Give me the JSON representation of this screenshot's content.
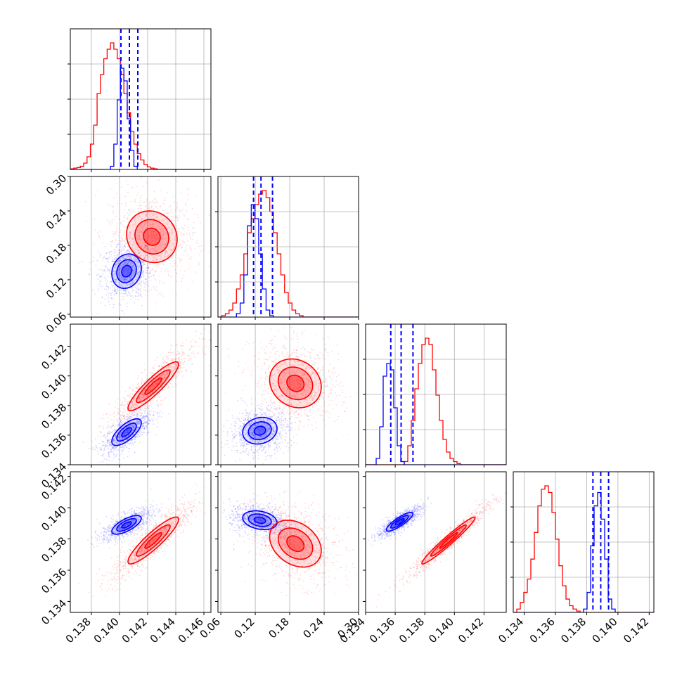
{
  "chart_data": {
    "type": "corner",
    "title": "",
    "parameters": [
      {
        "range": [
          0.1365,
          0.1465
        ],
        "ticks": [
          0.138,
          0.14,
          0.142,
          0.144,
          0.146
        ],
        "tick_labels": [
          "0.138",
          "0.140",
          "0.142",
          "0.144",
          "0.146"
        ]
      },
      {
        "range": [
          0.055,
          0.3
        ],
        "ticks": [
          0.06,
          0.12,
          0.18,
          0.24,
          0.3
        ],
        "tick_labels": [
          "0.06",
          "0.12",
          "0.18",
          "0.24",
          "0.30"
        ]
      },
      {
        "range": [
          0.134,
          0.1435
        ],
        "ticks": [
          0.134,
          0.136,
          0.138,
          0.14,
          0.142
        ],
        "tick_labels": [
          "0.134",
          "0.136",
          "0.138",
          "0.140",
          "0.142"
        ]
      },
      {
        "range": [
          0.1333,
          0.1423
        ],
        "ticks": [
          0.134,
          0.136,
          0.138,
          0.14,
          0.142
        ],
        "tick_labels": [
          "0.134",
          "0.136",
          "0.138",
          "0.140",
          "0.142"
        ]
      }
    ],
    "series": [
      {
        "color": "#0000ff",
        "quantile_lines": [
          [
            0.1401,
            0.1407,
            0.1413
          ],
          [
            0.117,
            0.13,
            0.15
          ],
          [
            0.1357,
            0.1364,
            0.1372
          ],
          [
            0.1384,
            0.1389,
            0.1394
          ]
        ],
        "histograms": [
          {
            "edges": [
              0.1365,
              0.1465
            ],
            "counts": [
              0,
              0,
              0,
              0,
              0,
              0,
              0,
              0,
              0,
              0,
              0,
              0,
              5,
              40,
              110,
              160,
              140,
              80,
              30,
              5,
              0,
              0,
              0,
              0,
              0,
              0,
              0,
              0,
              0,
              0,
              0,
              0,
              0,
              0,
              0,
              0,
              0,
              0,
              0,
              0,
              0,
              0
            ]
          },
          {
            "edges": [
              0.055,
              0.3
            ],
            "counts": [
              0,
              0,
              0,
              0,
              0,
              5,
              20,
              60,
              130,
              160,
              140,
              90,
              40,
              10,
              2,
              0,
              0,
              0,
              0,
              0,
              0,
              0,
              0,
              0,
              0,
              0,
              0,
              0,
              0,
              0,
              0,
              0,
              0,
              0,
              0,
              0,
              0,
              0
            ]
          },
          {
            "edges": [
              0.134,
              0.1435
            ],
            "counts": [
              0,
              0,
              0,
              10,
              60,
              140,
              160,
              150,
              90,
              30,
              5,
              0,
              0,
              0,
              0,
              0,
              0,
              0,
              0,
              0,
              0,
              0,
              0,
              0,
              0,
              0,
              0,
              0,
              0,
              0,
              0,
              0,
              0,
              0,
              0,
              0,
              0,
              0,
              0,
              0
            ]
          },
          {
            "edges": [
              0.1333,
              0.1423
            ],
            "counts": [
              0,
              0,
              0,
              0,
              0,
              0,
              0,
              0,
              0,
              0,
              0,
              0,
              0,
              0,
              0,
              0,
              0,
              0,
              0,
              0,
              5,
              30,
              100,
              160,
              180,
              140,
              80,
              20,
              5,
              0,
              0,
              0,
              0,
              0,
              0,
              0,
              0,
              0,
              0,
              0
            ]
          }
        ],
        "pair_summaries": [
          {
            "x": 0,
            "y": 1,
            "mean": [
              0.1405,
              0.135
            ],
            "sd": [
              0.0007,
              0.02
            ],
            "corr": 0.15
          },
          {
            "x": 0,
            "y": 2,
            "mean": [
              0.1405,
              0.1362
            ],
            "sd": [
              0.0007,
              0.0006
            ],
            "corr": 0.7
          },
          {
            "x": 1,
            "y": 2,
            "mean": [
              0.128,
              0.1363
            ],
            "sd": [
              0.02,
              0.0006
            ],
            "corr": 0.15
          },
          {
            "x": 0,
            "y": 3,
            "mean": [
              0.1405,
              0.1389
            ],
            "sd": [
              0.0007,
              0.0004
            ],
            "corr": 0.7
          },
          {
            "x": 1,
            "y": 3,
            "mean": [
              0.128,
              0.1392
            ],
            "sd": [
              0.02,
              0.0004
            ],
            "corr": -0.25
          },
          {
            "x": 2,
            "y": 3,
            "mean": [
              0.1363,
              0.1391
            ],
            "sd": [
              0.0006,
              0.0004
            ],
            "corr": 0.85
          }
        ]
      },
      {
        "color": "#ff0000",
        "quantile_lines": [],
        "histograms": [
          {
            "edges": [
              0.1365,
              0.1465
            ],
            "counts": [
              1,
              2,
              3,
              5,
              10,
              20,
              40,
              70,
              120,
              150,
              175,
              190,
              200,
              190,
              175,
              150,
              120,
              90,
              60,
              40,
              25,
              15,
              8,
              4,
              2,
              1,
              0,
              0,
              0,
              0,
              0,
              0,
              0,
              0,
              0,
              0,
              0,
              0,
              0,
              0,
              0,
              0
            ]
          },
          {
            "edges": [
              0.055,
              0.3
            ],
            "counts": [
              0,
              2,
              5,
              10,
              20,
              40,
              60,
              90,
              120,
              140,
              160,
              175,
              180,
              170,
              150,
              120,
              90,
              60,
              35,
              20,
              10,
              5,
              2,
              0,
              0,
              0,
              0,
              0,
              0,
              0,
              0,
              0,
              0,
              0,
              0,
              0,
              0,
              0
            ]
          },
          {
            "edges": [
              0.134,
              0.1435
            ],
            "counts": [
              0,
              0,
              0,
              0,
              0,
              0,
              0,
              0,
              0,
              0,
              0,
              5,
              30,
              70,
              120,
              160,
              190,
              200,
              190,
              150,
              110,
              70,
              40,
              20,
              10,
              5,
              2,
              0,
              0,
              0,
              0,
              0,
              0,
              0,
              0,
              0,
              0,
              0,
              0,
              0
            ]
          },
          {
            "edges": [
              0.1333,
              0.1423
            ],
            "counts": [
              0,
              5,
              15,
              30,
              50,
              80,
              120,
              160,
              185,
              190,
              180,
              150,
              110,
              70,
              40,
              20,
              10,
              5,
              2,
              0,
              0,
              0,
              0,
              0,
              0,
              0,
              0,
              0,
              0,
              0,
              0,
              0,
              0,
              0,
              0,
              0,
              0,
              0,
              0,
              0
            ]
          }
        ],
        "pair_summaries": [
          {
            "x": 0,
            "y": 1,
            "mean": [
              0.1423,
              0.195
            ],
            "sd": [
              0.0012,
              0.03
            ],
            "corr": -0.1
          },
          {
            "x": 0,
            "y": 2,
            "mean": [
              0.1424,
              0.1393
            ],
            "sd": [
              0.0012,
              0.0011
            ],
            "corr": 0.9
          },
          {
            "x": 1,
            "y": 2,
            "mean": [
              0.19,
              0.1395
            ],
            "sd": [
              0.03,
              0.0011
            ],
            "corr": -0.15
          },
          {
            "x": 0,
            "y": 3,
            "mean": [
              0.1424,
              0.1379
            ],
            "sd": [
              0.0012,
              0.001
            ],
            "corr": 0.9
          },
          {
            "x": 1,
            "y": 3,
            "mean": [
              0.19,
              0.1377
            ],
            "sd": [
              0.03,
              0.001
            ],
            "corr": -0.3
          },
          {
            "x": 2,
            "y": 3,
            "mean": [
              0.1396,
              0.1379
            ],
            "sd": [
              0.0012,
              0.001
            ],
            "corr": 0.97
          }
        ]
      }
    ],
    "grid": true,
    "contour_levels": [
      0.5,
      1.0,
      1.5
    ],
    "legend": null
  }
}
